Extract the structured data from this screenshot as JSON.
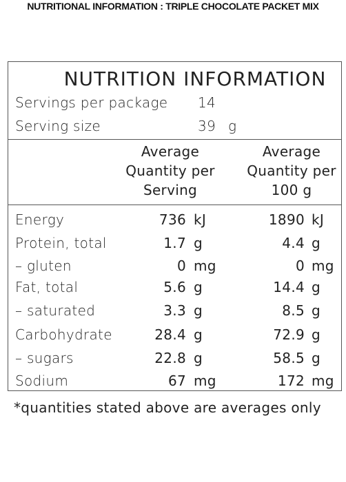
{
  "heading": "NUTRITIONAL INFORMATION : TRIPLE CHOCOLATE PACKET MIX",
  "panel": {
    "title": "NUTRITION INFORMATION",
    "servings_label": "Servings per package",
    "servings_value": "14",
    "serving_size_label": "Serving size",
    "serving_size_value": "39",
    "serving_size_unit": "g",
    "col_serving_line1": "Average",
    "col_serving_line2": "Quantity per",
    "col_serving_line3": "Serving",
    "col_100g_line1": "Average",
    "col_100g_line2": "Quantity per",
    "col_100g_line3": "100 g",
    "rows": [
      {
        "label": "Energy",
        "serving": "736",
        "serving_unit": "kJ",
        "per100": "1890",
        "per100_unit": "kJ"
      },
      {
        "label": "Protein, total",
        "serving": "1.7",
        "serving_unit": "g",
        "per100": "4.4",
        "per100_unit": "g"
      },
      {
        "label": "– gluten",
        "serving": "0",
        "serving_unit": "mg",
        "per100": "0",
        "per100_unit": "mg"
      },
      {
        "label": "Fat, total",
        "serving": "5.6",
        "serving_unit": "g",
        "per100": "14.4",
        "per100_unit": "g"
      },
      {
        "label": "– saturated",
        "serving": "3.3",
        "serving_unit": "g",
        "per100": "8.5",
        "per100_unit": "g"
      },
      {
        "label": "Carbohydrate",
        "serving": "28.4",
        "serving_unit": "g",
        "per100": "72.9",
        "per100_unit": "g"
      },
      {
        "label": "– sugars",
        "serving": "22.8",
        "serving_unit": "g",
        "per100": "58.5",
        "per100_unit": "g"
      },
      {
        "label": "Sodium",
        "serving": "67",
        "serving_unit": "mg",
        "per100": "172",
        "per100_unit": "mg"
      }
    ]
  },
  "footnote": "*quantities stated above are averages only"
}
